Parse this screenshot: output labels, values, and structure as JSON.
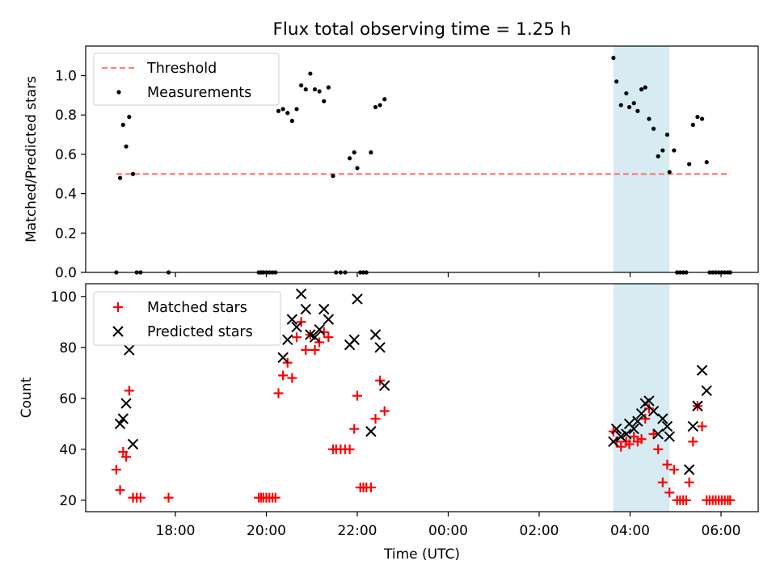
{
  "figure": {
    "title": "Flux total observing time = 1.25 h",
    "xlabel": "Time (UTC)",
    "xticks": [
      "18:00",
      "20:00",
      "22:00",
      "00:00",
      "02:00",
      "04:00",
      "06:00"
    ]
  },
  "chart_data": [
    {
      "type": "scatter",
      "panel": "top",
      "ylabel": "Matched/Predicted stars",
      "ylim": [
        0,
        1.15
      ],
      "yticks": [
        "0.0",
        "0.2",
        "0.4",
        "0.6",
        "0.8",
        "1.0"
      ],
      "x_axis": "time (UTC)",
      "highlight_span": {
        "x0": "03:38",
        "x1": "04:52",
        "color": "#add8e6"
      },
      "legend": {
        "placement": "top-left",
        "entries": [
          "Threshold",
          "Measurements"
        ]
      },
      "threshold": {
        "name": "Threshold",
        "value": 0.5,
        "x0": "16:42",
        "x1": "06:12",
        "color": "#ff7f7f",
        "style": "dashed"
      },
      "series": [
        {
          "name": "Measurements",
          "color": "#000000",
          "marker": "dot",
          "x": [
            "16:42",
            "16:47",
            "16:51",
            "16:55",
            "16:59",
            "17:04",
            "17:09",
            "17:14",
            "17:51",
            "19:50",
            "19:53",
            "19:56",
            "20:00",
            "20:04",
            "20:08",
            "20:12",
            "20:16",
            "20:22",
            "20:28",
            "20:34",
            "20:40",
            "20:46",
            "20:52",
            "20:58",
            "21:04",
            "21:10",
            "21:16",
            "21:22",
            "21:28",
            "21:32",
            "21:38",
            "21:44",
            "21:50",
            "21:56",
            "22:00",
            "22:04",
            "22:08",
            "22:12",
            "22:18",
            "22:24",
            "22:30",
            "22:36",
            "03:38",
            "03:42",
            "03:48",
            "03:55",
            "03:59",
            "04:05",
            "04:10",
            "04:15",
            "04:20",
            "04:25",
            "04:31",
            "04:37",
            "04:43",
            "04:49",
            "04:52",
            "04:58",
            "05:02",
            "05:06",
            "05:10",
            "05:14",
            "05:18",
            "05:23",
            "05:29",
            "05:35",
            "05:41",
            "05:45",
            "05:49",
            "05:53",
            "05:57",
            "06:01",
            "06:05",
            "06:09",
            "06:12"
          ],
          "y": [
            0.0,
            0.48,
            0.75,
            0.64,
            0.79,
            0.5,
            0.0,
            0.0,
            0.0,
            0.0,
            0.0,
            0.0,
            0.0,
            0.0,
            0.0,
            0.0,
            0.82,
            0.83,
            0.81,
            0.77,
            0.83,
            0.95,
            0.93,
            1.01,
            0.93,
            0.92,
            0.87,
            0.94,
            0.49,
            0.0,
            0.0,
            0.0,
            0.58,
            0.61,
            0.53,
            0.0,
            0.0,
            0.0,
            0.61,
            0.84,
            0.85,
            0.88,
            1.09,
            0.97,
            0.85,
            0.91,
            0.84,
            0.86,
            0.82,
            0.93,
            0.94,
            0.78,
            0.73,
            0.59,
            0.62,
            0.7,
            0.51,
            0.62,
            0.0,
            0.0,
            0.0,
            0.0,
            0.55,
            0.75,
            0.79,
            0.78,
            0.56,
            0.0,
            0.0,
            0.0,
            0.0,
            0.0,
            0.0,
            0.0,
            0.0
          ]
        }
      ]
    },
    {
      "type": "scatter",
      "panel": "bottom",
      "ylabel": "Count",
      "ylim": [
        15.5,
        105
      ],
      "yticks": [
        "20",
        "40",
        "60",
        "80",
        "100"
      ],
      "x_axis": "time (UTC)",
      "highlight_span": {
        "x0": "03:38",
        "x1": "04:52",
        "color": "#add8e6"
      },
      "legend": {
        "placement": "top-left",
        "entries": [
          "Matched stars",
          "Predicted stars"
        ]
      },
      "series": [
        {
          "name": "Matched stars",
          "color": "#ff0000",
          "marker": "plus",
          "x": [
            "16:42",
            "16:47",
            "16:51",
            "16:55",
            "16:59",
            "17:04",
            "17:09",
            "17:14",
            "17:51",
            "19:50",
            "19:53",
            "19:56",
            "20:00",
            "20:04",
            "20:08",
            "20:12",
            "20:16",
            "20:22",
            "20:28",
            "20:34",
            "20:40",
            "20:46",
            "20:52",
            "20:58",
            "21:04",
            "21:10",
            "21:16",
            "21:22",
            "21:28",
            "21:32",
            "21:38",
            "21:44",
            "21:50",
            "21:56",
            "22:00",
            "22:04",
            "22:08",
            "22:12",
            "22:18",
            "22:24",
            "22:30",
            "22:36",
            "03:38",
            "03:42",
            "03:48",
            "03:55",
            "03:59",
            "04:05",
            "04:10",
            "04:15",
            "04:20",
            "04:25",
            "04:31",
            "04:37",
            "04:43",
            "04:49",
            "04:52",
            "04:58",
            "05:02",
            "05:06",
            "05:10",
            "05:14",
            "05:18",
            "05:23",
            "05:29",
            "05:35",
            "05:41",
            "05:45",
            "05:49",
            "05:53",
            "05:57",
            "06:01",
            "06:05",
            "06:09",
            "06:12"
          ],
          "y": [
            32,
            24,
            39,
            37,
            63,
            21,
            21,
            21,
            21,
            21,
            21,
            21,
            21,
            21,
            21,
            21,
            62,
            69,
            74,
            68,
            84,
            90,
            79,
            85,
            79,
            82,
            86,
            84,
            40,
            40,
            40,
            40,
            40,
            48,
            61,
            25,
            25,
            25,
            25,
            52,
            67,
            55,
            47,
            43,
            41,
            43,
            42,
            45,
            43,
            44,
            52,
            56,
            46,
            40,
            27,
            34,
            23,
            32,
            20,
            20,
            20,
            20,
            27,
            43,
            57,
            49,
            20,
            20,
            20,
            20,
            20,
            20,
            20,
            20,
            20
          ]
        },
        {
          "name": "Predicted stars",
          "color": "#000000",
          "marker": "x",
          "x": [
            "16:47",
            "16:51",
            "16:55",
            "16:59",
            "17:04",
            "20:22",
            "20:28",
            "20:34",
            "20:40",
            "20:46",
            "20:52",
            "20:58",
            "21:04",
            "21:10",
            "21:16",
            "21:22",
            "21:50",
            "21:56",
            "22:00",
            "22:18",
            "22:24",
            "22:30",
            "22:36",
            "03:38",
            "03:42",
            "03:48",
            "03:55",
            "03:59",
            "04:05",
            "04:10",
            "04:15",
            "04:20",
            "04:25",
            "04:31",
            "04:37",
            "04:43",
            "04:49",
            "04:52",
            "05:18",
            "05:23",
            "05:29",
            "05:35",
            "05:41"
          ],
          "y": [
            50,
            52,
            58,
            79,
            42,
            76,
            83,
            91,
            88,
            101,
            95,
            85,
            84,
            87,
            95,
            91,
            81,
            83,
            99,
            47,
            85,
            80,
            65,
            43,
            48,
            45,
            46,
            50,
            48,
            51,
            54,
            58,
            59,
            55,
            46,
            52,
            49,
            45,
            32,
            49,
            57,
            71,
            63
          ]
        }
      ]
    }
  ]
}
